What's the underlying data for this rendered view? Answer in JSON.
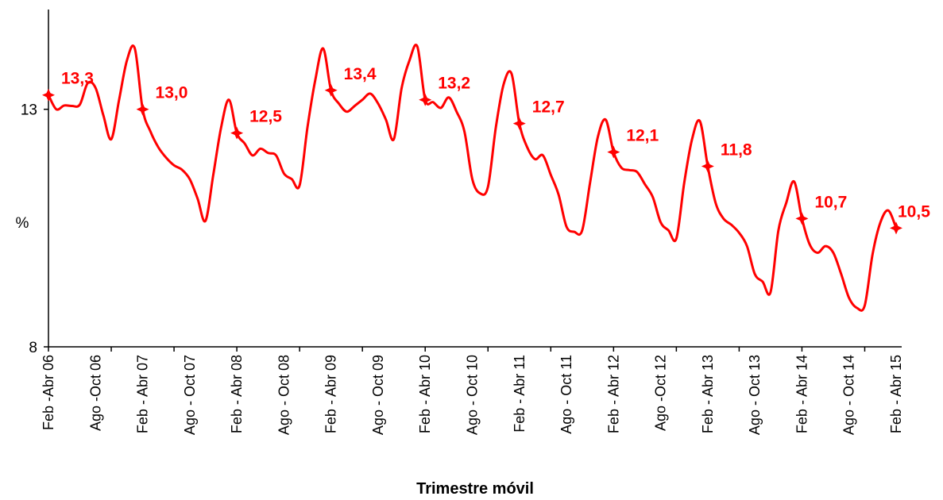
{
  "chart_data": {
    "type": "line",
    "x_label": "Trimestre móvil",
    "y_label": "%",
    "categories": [
      "Feb -Abr 06",
      null,
      null,
      null,
      null,
      null,
      "Ago -Oct 06",
      null,
      null,
      null,
      null,
      null,
      "Feb - Abr 07",
      null,
      null,
      null,
      null,
      null,
      "Ago - Oct 07",
      null,
      null,
      null,
      null,
      null,
      "Feb - Abr 08",
      null,
      null,
      null,
      null,
      null,
      "Ago - Oct 08",
      null,
      null,
      null,
      null,
      null,
      "Feb - Abr 09",
      null,
      null,
      null,
      null,
      null,
      "Ago - Oct 09",
      null,
      null,
      null,
      null,
      null,
      "Feb - Abr 10",
      null,
      null,
      null,
      null,
      null,
      "Ago - Oct 10",
      null,
      null,
      null,
      null,
      null,
      "Feb - Abr 11",
      null,
      null,
      null,
      null,
      null,
      "Ago - Oct 11",
      null,
      null,
      null,
      null,
      null,
      "Feb - Abr 12",
      null,
      null,
      null,
      null,
      null,
      "Ago -Oct 12",
      null,
      null,
      null,
      null,
      null,
      "Feb - Abr 13",
      null,
      null,
      null,
      null,
      null,
      "Ago - Oct 13",
      null,
      null,
      null,
      null,
      null,
      "Feb - Abr 14",
      null,
      null,
      null,
      null,
      null,
      "Ago - Oct 14",
      null,
      null,
      null,
      null,
      null,
      "Feb - Abr 15"
    ],
    "series": [
      {
        "color": "#ff0000",
        "values": [
          13.3,
          13.0,
          13.08,
          13.07,
          13.1,
          13.55,
          13.45,
          12.87,
          12.37,
          13.2,
          14.03,
          14.28,
          13.0,
          12.53,
          12.2,
          11.98,
          11.82,
          11.73,
          11.53,
          11.12,
          10.65,
          11.62,
          12.62,
          13.2,
          12.5,
          12.28,
          12.03,
          12.17,
          12.08,
          12.03,
          11.65,
          11.53,
          11.4,
          12.62,
          13.62,
          14.28,
          13.4,
          13.12,
          12.95,
          13.07,
          13.2,
          13.33,
          13.12,
          12.78,
          12.37,
          13.45,
          14.03,
          14.32,
          13.2,
          13.15,
          13.03,
          13.25,
          12.95,
          12.53,
          11.53,
          11.23,
          11.37,
          12.62,
          13.53,
          13.75,
          12.7,
          12.2,
          11.95,
          12.03,
          11.62,
          11.2,
          10.53,
          10.42,
          10.45,
          11.45,
          12.42,
          12.78,
          12.1,
          11.77,
          11.72,
          11.68,
          11.42,
          11.15,
          10.62,
          10.45,
          10.28,
          11.45,
          12.37,
          12.75,
          11.8,
          11.03,
          10.7,
          10.57,
          10.4,
          10.12,
          9.53,
          9.37,
          9.15,
          10.45,
          11.03,
          11.48,
          10.7,
          10.15,
          9.98,
          10.12,
          9.98,
          9.53,
          9.03,
          8.82,
          8.87,
          9.95,
          10.62,
          10.87,
          10.5
        ],
        "value_labels": [
          "13,3",
          null,
          null,
          null,
          null,
          null,
          null,
          null,
          null,
          null,
          null,
          null,
          "13,0",
          null,
          null,
          null,
          null,
          null,
          null,
          null,
          null,
          null,
          null,
          null,
          "12,5",
          null,
          null,
          null,
          null,
          null,
          null,
          null,
          null,
          null,
          null,
          null,
          "13,4",
          null,
          null,
          null,
          null,
          null,
          null,
          null,
          null,
          null,
          null,
          null,
          "13,2",
          null,
          null,
          null,
          null,
          null,
          null,
          null,
          null,
          null,
          null,
          null,
          "12,7",
          null,
          null,
          null,
          null,
          null,
          null,
          null,
          null,
          null,
          null,
          null,
          "12,1",
          null,
          null,
          null,
          null,
          null,
          null,
          null,
          null,
          null,
          null,
          null,
          "11,8",
          null,
          null,
          null,
          null,
          null,
          null,
          null,
          null,
          null,
          null,
          null,
          "10,7",
          null,
          null,
          null,
          null,
          null,
          null,
          null,
          null,
          null,
          null,
          null,
          "10,5"
        ]
      }
    ],
    "ylim": [
      8,
      15.1
    ],
    "yticks": [
      8,
      13
    ]
  }
}
